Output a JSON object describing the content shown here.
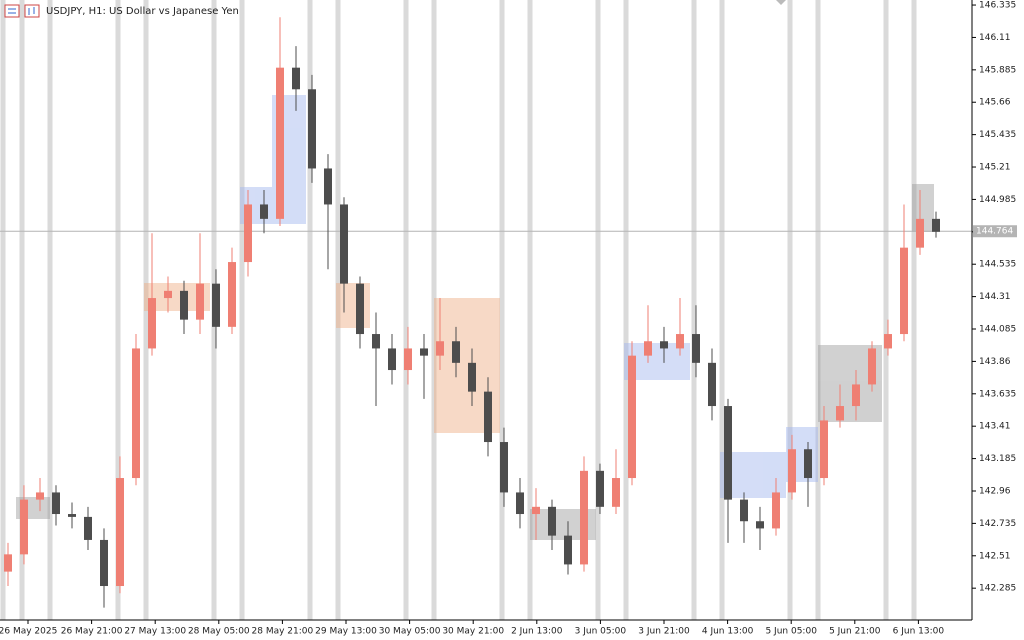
{
  "chart_data": {
    "type": "candlestick",
    "title": "USDJPY, H1:  US Dollar vs Japanese Yen",
    "ylim": [
      142.064,
      146.37
    ],
    "yticks": [
      146.335,
      146.11,
      145.885,
      145.66,
      145.435,
      145.21,
      144.985,
      144.76,
      144.535,
      144.31,
      144.085,
      143.86,
      143.635,
      143.41,
      143.185,
      142.96,
      142.735,
      142.51,
      142.285
    ],
    "current_price": 144.764,
    "time_labels": [
      "26 May 2025",
      "26 May 21:00",
      "27 May 13:00",
      "28 May 05:00",
      "28 May 21:00",
      "29 May 13:00",
      "30 May 05:00",
      "30 May 21:00",
      "2 Jun 13:00",
      "3 Jun 05:00",
      "3 Jun 21:00",
      "4 Jun 13:00",
      "5 Jun 05:00",
      "5 Jun 21:00",
      "6 Jun 13:00"
    ],
    "up_color": "#ef7f73",
    "down_color": "#4d4d4d",
    "open": [
      142.4,
      142.52,
      142.9,
      142.95,
      142.8,
      142.78,
      142.62,
      142.3,
      143.05,
      143.95,
      144.3,
      144.35,
      144.15,
      144.4,
      144.1,
      144.55,
      144.95,
      144.85,
      145.9,
      145.75,
      145.2,
      144.95,
      144.4,
      144.05,
      143.95,
      143.8,
      143.95,
      143.9,
      144.0,
      143.85,
      143.65,
      143.3,
      142.95,
      142.8,
      142.85,
      142.65,
      142.45,
      143.1,
      142.85,
      143.05,
      143.9,
      144.0,
      143.95,
      144.05,
      143.85,
      143.55,
      142.9,
      142.75,
      142.7,
      142.95,
      143.25,
      143.05,
      143.45,
      143.55,
      143.7,
      143.95,
      144.05,
      144.65,
      144.85
    ],
    "high": [
      142.6,
      143.0,
      143.05,
      143.0,
      142.88,
      142.85,
      142.7,
      143.2,
      144.05,
      144.75,
      144.45,
      144.42,
      144.75,
      144.5,
      144.65,
      145.05,
      145.05,
      146.25,
      146.05,
      145.85,
      145.3,
      145.0,
      144.45,
      144.2,
      144.05,
      144.1,
      144.05,
      144.3,
      144.1,
      143.95,
      143.75,
      143.4,
      143.05,
      142.98,
      142.9,
      142.75,
      143.2,
      143.15,
      143.25,
      144.0,
      144.25,
      144.1,
      144.3,
      144.25,
      143.95,
      143.6,
      142.95,
      142.85,
      143.05,
      143.35,
      143.3,
      143.55,
      143.7,
      143.8,
      144.0,
      144.15,
      144.95,
      145.05,
      144.9
    ],
    "low": [
      142.3,
      142.45,
      142.82,
      142.72,
      142.7,
      142.55,
      142.15,
      142.25,
      143.0,
      143.9,
      144.2,
      144.05,
      144.05,
      143.95,
      144.05,
      144.45,
      144.75,
      144.8,
      145.6,
      145.1,
      144.5,
      144.2,
      143.95,
      143.55,
      143.7,
      143.7,
      143.6,
      143.8,
      143.75,
      143.55,
      143.2,
      142.85,
      142.7,
      142.62,
      142.55,
      142.38,
      142.4,
      142.8,
      142.8,
      143.0,
      143.85,
      143.85,
      143.9,
      143.75,
      143.45,
      142.6,
      142.6,
      142.55,
      142.65,
      142.9,
      142.85,
      143.0,
      143.4,
      143.45,
      143.65,
      143.9,
      144.0,
      144.6,
      144.72
    ],
    "close": [
      142.52,
      142.9,
      142.95,
      142.8,
      142.78,
      142.62,
      142.3,
      143.05,
      143.95,
      144.3,
      144.35,
      144.15,
      144.4,
      144.1,
      144.55,
      144.95,
      144.85,
      145.9,
      145.75,
      145.2,
      144.95,
      144.4,
      144.05,
      143.95,
      143.8,
      143.95,
      143.9,
      144.0,
      143.85,
      143.65,
      143.3,
      142.95,
      142.8,
      142.85,
      142.65,
      142.45,
      143.1,
      142.85,
      143.05,
      143.9,
      144.0,
      143.95,
      144.05,
      143.85,
      143.55,
      142.9,
      142.75,
      142.7,
      142.95,
      143.25,
      143.05,
      143.45,
      143.55,
      143.7,
      143.95,
      144.05,
      144.65,
      144.85,
      144.76
    ]
  }
}
